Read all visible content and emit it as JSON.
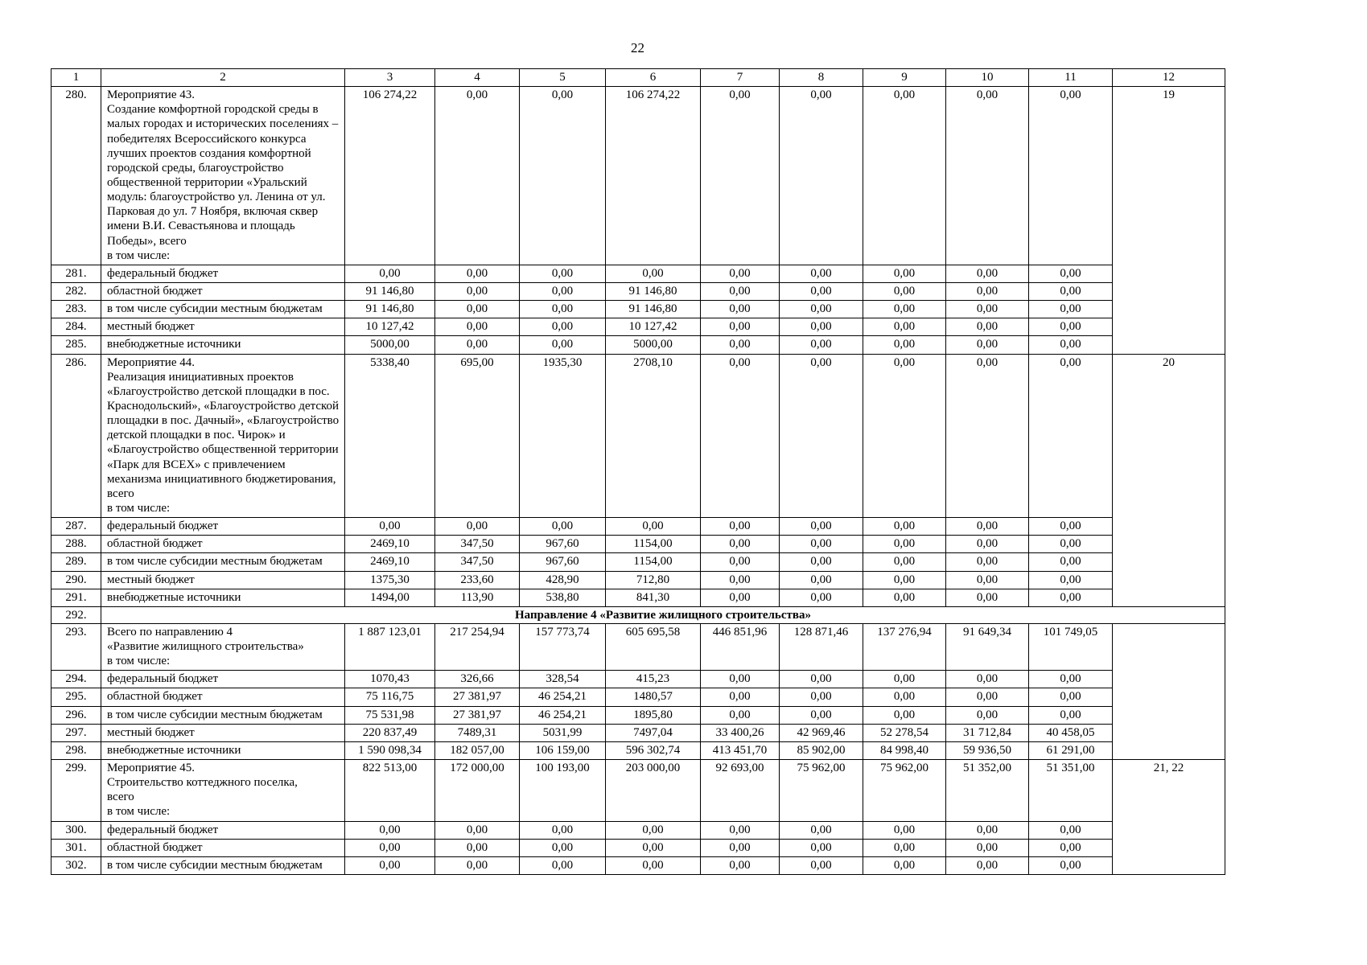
{
  "page": {
    "number": "22"
  },
  "table": {
    "header": [
      "1",
      "2",
      "3",
      "4",
      "5",
      "6",
      "7",
      "8",
      "9",
      "10",
      "11",
      "12"
    ],
    "rows": [
      {
        "num": "280.",
        "type": "measure",
        "label": "Мероприятие 43.\nСоздание комфортной городской среды в малых городах и исторических поселениях – победителях Всероссийского конкурса лучших проектов создания комфортной городской среды, благоустройство общественной территории «Уральский модуль: благоустройство ул. Ленина от ул. Парковая до ул. 7 Ноября, включая сквер имени В.И. Севастьянова и площадь Победы», всего\nв том числе:",
        "values": [
          "106 274,22",
          "0,00",
          "0,00",
          "106 274,22",
          "0,00",
          "0,00",
          "0,00",
          "0,00",
          "0,00"
        ],
        "note": "19",
        "note_rowspan": 6
      },
      {
        "num": "281.",
        "type": "sub",
        "label": "федеральный бюджет",
        "values": [
          "0,00",
          "0,00",
          "0,00",
          "0,00",
          "0,00",
          "0,00",
          "0,00",
          "0,00",
          "0,00"
        ]
      },
      {
        "num": "282.",
        "type": "sub",
        "label": "областной бюджет",
        "values": [
          "91 146,80",
          "0,00",
          "0,00",
          "91 146,80",
          "0,00",
          "0,00",
          "0,00",
          "0,00",
          "0,00"
        ]
      },
      {
        "num": "283.",
        "type": "sub",
        "label": "в том числе субсидии местным бюджетам",
        "values": [
          "91 146,80",
          "0,00",
          "0,00",
          "91 146,80",
          "0,00",
          "0,00",
          "0,00",
          "0,00",
          "0,00"
        ]
      },
      {
        "num": "284.",
        "type": "sub",
        "label": "местный бюджет",
        "values": [
          "10 127,42",
          "0,00",
          "0,00",
          "10 127,42",
          "0,00",
          "0,00",
          "0,00",
          "0,00",
          "0,00"
        ]
      },
      {
        "num": "285.",
        "type": "sub",
        "label": "внебюджетные источники",
        "values": [
          "5000,00",
          "0,00",
          "0,00",
          "5000,00",
          "0,00",
          "0,00",
          "0,00",
          "0,00",
          "0,00"
        ]
      },
      {
        "num": "286.",
        "type": "measure",
        "label": "Мероприятие 44.\nРеализация инициативных проектов «Благоустройство детской площадки в пос. Краснодольский», «Благоустройство детской площадки в пос. Дачный», «Благоустройство детской площадки в пос. Чирок» и «Благоустройство общественной территории «Парк для ВСЕХ» с привлечением механизма инициативного бюджетирования, всего\nв том числе:",
        "values": [
          "5338,40",
          "695,00",
          "1935,30",
          "2708,10",
          "0,00",
          "0,00",
          "0,00",
          "0,00",
          "0,00"
        ],
        "note": "20",
        "note_rowspan": 6
      },
      {
        "num": "287.",
        "type": "sub",
        "label": "федеральный бюджет",
        "values": [
          "0,00",
          "0,00",
          "0,00",
          "0,00",
          "0,00",
          "0,00",
          "0,00",
          "0,00",
          "0,00"
        ]
      },
      {
        "num": "288.",
        "type": "sub",
        "label": "областной бюджет",
        "values": [
          "2469,10",
          "347,50",
          "967,60",
          "1154,00",
          "0,00",
          "0,00",
          "0,00",
          "0,00",
          "0,00"
        ]
      },
      {
        "num": "289.",
        "type": "sub",
        "label": "в том числе субсидии местным бюджетам",
        "values": [
          "2469,10",
          "347,50",
          "967,60",
          "1154,00",
          "0,00",
          "0,00",
          "0,00",
          "0,00",
          "0,00"
        ]
      },
      {
        "num": "290.",
        "type": "sub",
        "label": "местный бюджет",
        "values": [
          "1375,30",
          "233,60",
          "428,90",
          "712,80",
          "0,00",
          "0,00",
          "0,00",
          "0,00",
          "0,00"
        ]
      },
      {
        "num": "291.",
        "type": "sub",
        "label": "внебюджетные источники",
        "values": [
          "1494,00",
          "113,90",
          "538,80",
          "841,30",
          "0,00",
          "0,00",
          "0,00",
          "0,00",
          "0,00"
        ]
      },
      {
        "num": "292.",
        "type": "section",
        "label": "Направление 4 «Развитие жилищного строительства»"
      },
      {
        "num": "293.",
        "type": "measure",
        "label": "Всего по направлению 4\n«Развитие жилищного строительства»\nв том числе:",
        "values": [
          "1 887 123,01",
          "217 254,94",
          "157 773,74",
          "605 695,58",
          "446 851,96",
          "128 871,46",
          "137 276,94",
          "91 649,34",
          "101 749,05"
        ],
        "note": "",
        "note_rowspan": 6
      },
      {
        "num": "294.",
        "type": "sub",
        "label": "федеральный бюджет",
        "values": [
          "1070,43",
          "326,66",
          "328,54",
          "415,23",
          "0,00",
          "0,00",
          "0,00",
          "0,00",
          "0,00"
        ]
      },
      {
        "num": "295.",
        "type": "sub",
        "label": "областной бюджет",
        "values": [
          "75 116,75",
          "27 381,97",
          "46 254,21",
          "1480,57",
          "0,00",
          "0,00",
          "0,00",
          "0,00",
          "0,00"
        ]
      },
      {
        "num": "296.",
        "type": "sub",
        "label": "в том числе субсидии местным бюджетам",
        "values": [
          "75 531,98",
          "27 381,97",
          "46 254,21",
          "1895,80",
          "0,00",
          "0,00",
          "0,00",
          "0,00",
          "0,00"
        ]
      },
      {
        "num": "297.",
        "type": "sub",
        "label": "местный бюджет",
        "values": [
          "220 837,49",
          "7489,31",
          "5031,99",
          "7497,04",
          "33 400,26",
          "42 969,46",
          "52 278,54",
          "31 712,84",
          "40 458,05"
        ]
      },
      {
        "num": "298.",
        "type": "sub",
        "label": "внебюджетные источники",
        "values": [
          "1 590 098,34",
          "182 057,00",
          "106 159,00",
          "596 302,74",
          "413 451,70",
          "85 902,00",
          "84 998,40",
          "59 936,50",
          "61 291,00"
        ]
      },
      {
        "num": "299.",
        "type": "measure",
        "label": "Мероприятие 45.\nСтроительство коттеджного поселка,\nвсего\nв том числе:",
        "values": [
          "822 513,00",
          "172 000,00",
          "100 193,00",
          "203 000,00",
          "92 693,00",
          "75 962,00",
          "75 962,00",
          "51 352,00",
          "51 351,00"
        ],
        "note": "21, 22",
        "note_rowspan": 4
      },
      {
        "num": "300.",
        "type": "sub",
        "label": "федеральный бюджет",
        "values": [
          "0,00",
          "0,00",
          "0,00",
          "0,00",
          "0,00",
          "0,00",
          "0,00",
          "0,00",
          "0,00"
        ]
      },
      {
        "num": "301.",
        "type": "sub",
        "label": "областной бюджет",
        "values": [
          "0,00",
          "0,00",
          "0,00",
          "0,00",
          "0,00",
          "0,00",
          "0,00",
          "0,00",
          "0,00"
        ]
      },
      {
        "num": "302.",
        "type": "sub",
        "label": "в том числе субсидии местным бюджетам",
        "values": [
          "0,00",
          "0,00",
          "0,00",
          "0,00",
          "0,00",
          "0,00",
          "0,00",
          "0,00",
          "0,00"
        ]
      }
    ]
  }
}
